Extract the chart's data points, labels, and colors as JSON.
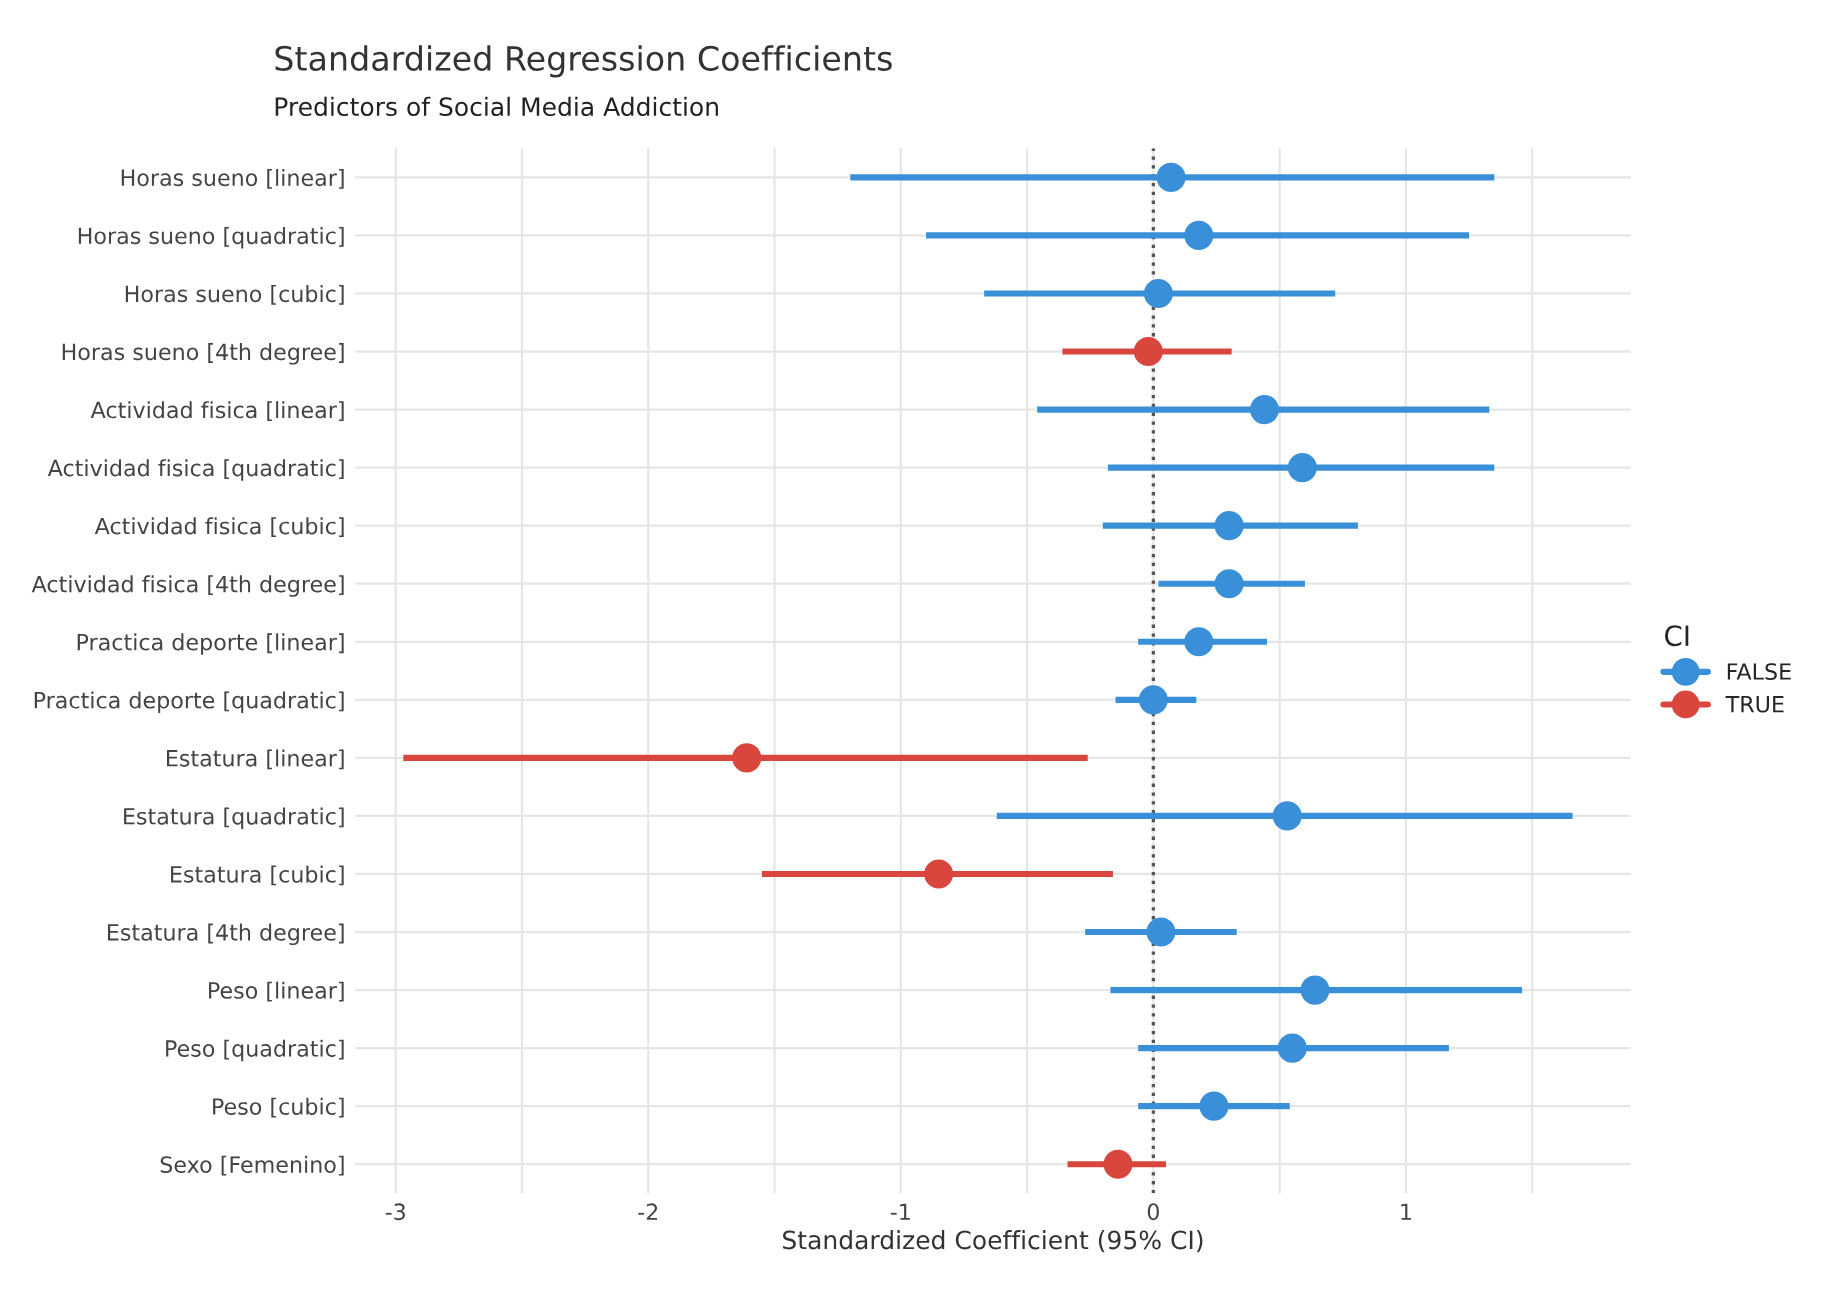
{
  "chart_data": {
    "type": "scatter",
    "orientation": "horizontal",
    "title": "Standardized Regression Coefficients",
    "subtitle": "Predictors of Social Media Addiction",
    "xlabel": "Standardized Coefficient (95% CI)",
    "legend_title": "CI",
    "legend": "right",
    "grid": true,
    "marker": "circle",
    "categories": [
      "Horas sueno [linear]",
      "Horas sueno [quadratic]",
      "Horas sueno [cubic]",
      "Horas sueno [4th degree]",
      "Actividad fisica [linear]",
      "Actividad fisica [quadratic]",
      "Actividad fisica [cubic]",
      "Actividad fisica [4th degree]",
      "Practica deporte [linear]",
      "Practica deporte [quadratic]",
      "Estatura [linear]",
      "Estatura [quadratic]",
      "Estatura [cubic]",
      "Estatura [4th degree]",
      "Peso [linear]",
      "Peso [quadratic]",
      "Peso [cubic]",
      "Sexo [Femenino]"
    ],
    "xlim": [
      -3.16,
      1.89
    ],
    "xticks": [
      -3,
      {
        "value": -2.5,
        "label": null
      },
      -2,
      {
        "value": -1.5,
        "label": null
      },
      -1,
      {
        "value": -0.5,
        "label": null
      },
      0,
      {
        "value": 0.5,
        "label": null
      },
      1,
      {
        "value": 1.5,
        "label": null
      }
    ],
    "ref_lines": [
      {
        "axis": "x",
        "value": 0,
        "label": null,
        "color": "#555555",
        "line_style": "dotted"
      }
    ],
    "series": [
      {
        "name": "FALSE",
        "color": "#3a8fd9",
        "values": [
          0.07,
          0.18,
          0.02,
          null,
          0.44,
          0.59,
          0.3,
          0.3,
          0.18,
          0.0,
          null,
          0.53,
          null,
          0.03,
          0.64,
          0.55,
          0.24,
          null
        ],
        "errors": [
          [
            -1.2,
            1.35
          ],
          [
            -0.9,
            1.25
          ],
          [
            -0.67,
            0.72
          ],
          null,
          [
            -0.46,
            1.33
          ],
          [
            -0.18,
            1.35
          ],
          [
            -0.2,
            0.81
          ],
          [
            0.02,
            0.6
          ],
          [
            -0.06,
            0.45
          ],
          [
            -0.15,
            0.17
          ],
          null,
          [
            -0.62,
            1.66
          ],
          null,
          [
            -0.27,
            0.33
          ],
          [
            -0.17,
            1.46
          ],
          [
            -0.06,
            1.17
          ],
          [
            -0.06,
            0.54
          ],
          null
        ]
      },
      {
        "name": "TRUE",
        "color": "#d9463e",
        "values": [
          null,
          null,
          null,
          -0.02,
          null,
          null,
          null,
          null,
          null,
          null,
          -1.61,
          null,
          -0.85,
          null,
          null,
          null,
          null,
          -0.14
        ],
        "errors": [
          null,
          null,
          null,
          [
            -0.36,
            0.31
          ],
          null,
          null,
          null,
          null,
          null,
          null,
          [
            -2.97,
            -0.26
          ],
          null,
          [
            -1.55,
            -0.16
          ],
          null,
          null,
          null,
          null,
          [
            -0.34,
            0.05
          ]
        ]
      }
    ]
  }
}
